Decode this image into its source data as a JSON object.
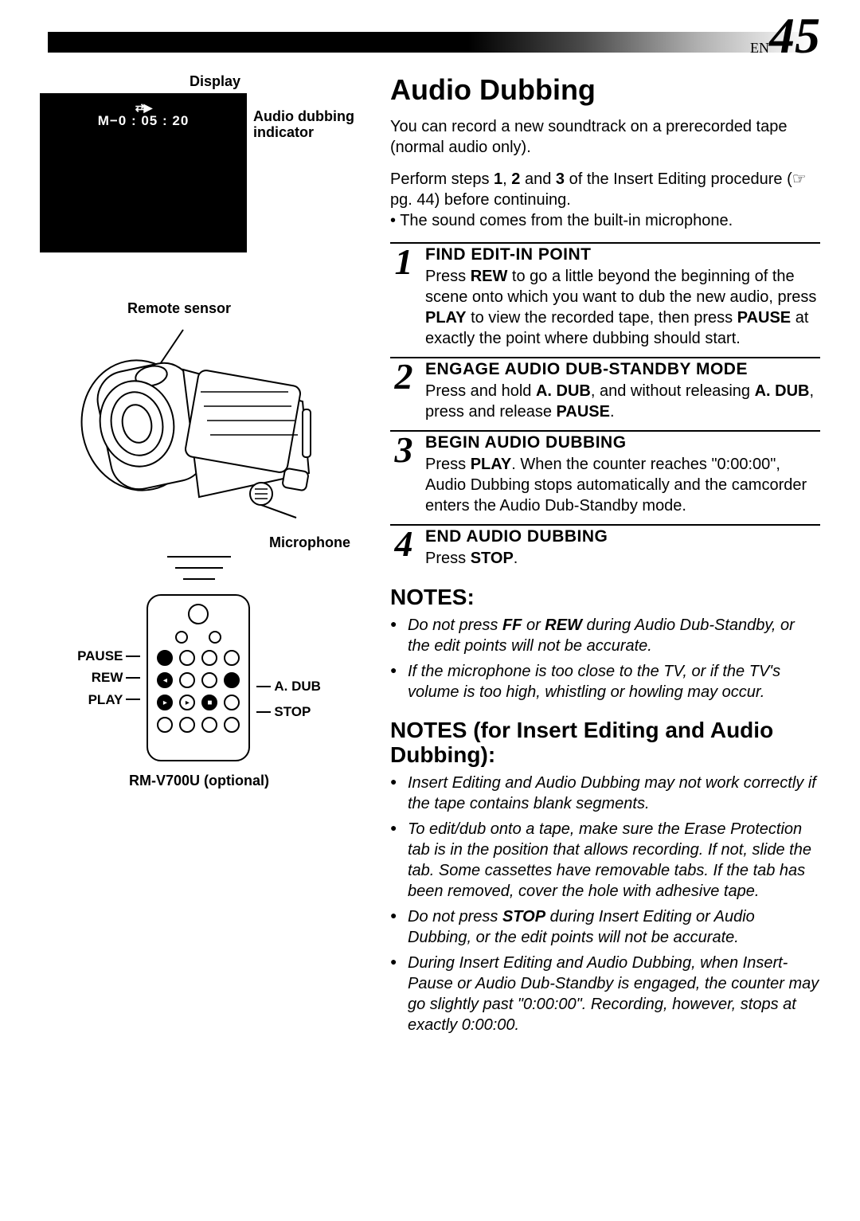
{
  "page": {
    "prefix": "EN",
    "number": "45"
  },
  "left": {
    "display_label": "Display",
    "display_icon": "⇄▶",
    "display_time": "M−0 : 05 : 20",
    "indicator_label_l1": "Audio dubbing",
    "indicator_label_l2": "indicator",
    "remote_sensor_label": "Remote sensor",
    "microphone_label": "Microphone",
    "remote_buttons_left": {
      "pause": "PAUSE",
      "rew": "REW",
      "play": "PLAY"
    },
    "remote_buttons_right": {
      "adub": "A. DUB",
      "stop": "STOP"
    },
    "remote_caption": "RM-V700U (optional)"
  },
  "right": {
    "title": "Audio Dubbing",
    "intro": "You can record a new soundtrack on a prerecorded tape (normal audio only).",
    "perform_a": "Perform steps ",
    "perform_nums": [
      "1",
      "2",
      "3"
    ],
    "perform_b": " of the Insert Editing procedure (☞ pg. 44) before continuing.",
    "perform_bullet": "• The sound comes from the built-in microphone.",
    "steps": [
      {
        "n": "1",
        "title": "FIND EDIT-IN POINT",
        "text_a": "Press ",
        "b1": "REW",
        "text_b": " to go a little beyond the beginning of the scene onto which you want to dub the new audio, press ",
        "b2": "PLAY",
        "text_c": " to view the recorded tape, then press ",
        "b3": "PAUSE",
        "text_d": " at exactly the point where dubbing should start."
      },
      {
        "n": "2",
        "title": "ENGAGE AUDIO DUB-STANDBY MODE",
        "text_a": "Press and hold ",
        "b1": "A. DUB",
        "text_b": ", and without releasing ",
        "b2": "A. DUB",
        "text_c": ", press and release ",
        "b3": "PAUSE",
        "text_d": "."
      },
      {
        "n": "3",
        "title": "BEGIN AUDIO DUBBING",
        "text_a": "Press ",
        "b1": "PLAY",
        "text_b": ". When the counter reaches \"0:00:00\", Audio Dubbing stops automatically and the camcorder enters the Audio Dub-Standby mode.",
        "b2": "",
        "text_c": "",
        "b3": "",
        "text_d": ""
      },
      {
        "n": "4",
        "title": "END AUDIO DUBBING",
        "text_a": "Press ",
        "b1": "STOP",
        "text_b": ".",
        "b2": "",
        "text_c": "",
        "b3": "",
        "text_d": ""
      }
    ],
    "notes_heading": "NOTES:",
    "notes": [
      {
        "pre": "Do not press ",
        "b1": "FF",
        "mid": " or ",
        "b2": "REW",
        "post": " during Audio Dub-Standby, or the edit points will not be accurate."
      },
      {
        "pre": "If the microphone is too close to the TV, or if the TV's volume is too high, whistling or howling may occur.",
        "b1": "",
        "mid": "",
        "b2": "",
        "post": ""
      }
    ],
    "notes2_heading": "NOTES (for Insert Editing and Audio Dubbing):",
    "notes2": [
      {
        "pre": "Insert Editing and Audio Dubbing may not work correctly if the tape contains blank segments.",
        "b1": "",
        "mid": "",
        "b2": "",
        "post": ""
      },
      {
        "pre": "To edit/dub onto a tape, make sure the Erase Protection tab is in the position that allows recording. If not, slide the tab. Some cassettes have removable tabs. If the tab has been removed, cover the hole with adhesive tape.",
        "b1": "",
        "mid": "",
        "b2": "",
        "post": ""
      },
      {
        "pre": "Do not press ",
        "b1": "STOP",
        "mid": " during Insert Editing or Audio Dubbing, or the edit points will not be accurate.",
        "b2": "",
        "post": ""
      },
      {
        "pre": "During Insert Editing and Audio Dubbing, when Insert-Pause or Audio Dub-Standby is engaged, the counter may go slightly past \"0:00:00\". Recording, however, stops at exactly 0:00:00.",
        "b1": "",
        "mid": "",
        "b2": "",
        "post": ""
      }
    ]
  },
  "colors": {
    "black": "#000000",
    "white": "#ffffff"
  }
}
